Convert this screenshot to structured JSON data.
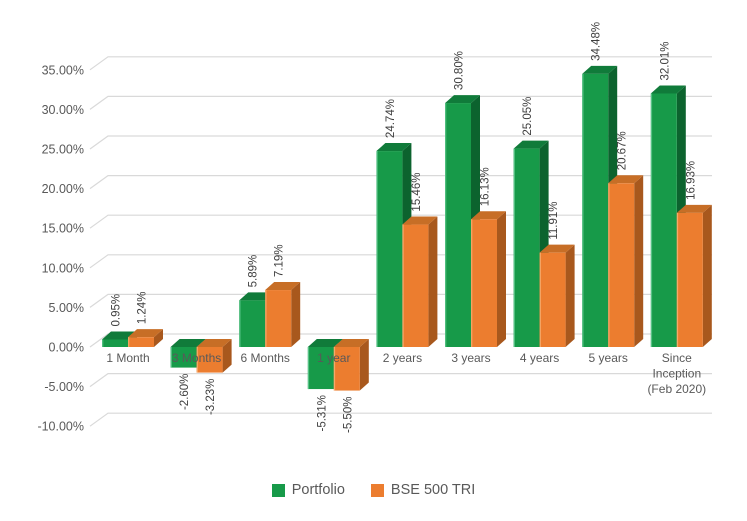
{
  "chart_data": {
    "type": "bar",
    "style": "3d-column",
    "title": "",
    "xlabel": "",
    "ylabel": "",
    "ylim": [
      -10,
      35
    ],
    "ytick_step": 5,
    "grid": true,
    "legend_position": "bottom",
    "data_label_rotation": 90,
    "categories": [
      "1 Month",
      "3 Months",
      "6 Months",
      "1 year",
      "2 years",
      "3 years",
      "4 years",
      "5 years",
      "Since Inception (Feb 2020)"
    ],
    "categories_wrapped": [
      [
        "1 Month"
      ],
      [
        "3 Months"
      ],
      [
        "6 Months"
      ],
      [
        "1 year"
      ],
      [
        "2 years"
      ],
      [
        "3 years"
      ],
      [
        "4 years"
      ],
      [
        "5 years"
      ],
      [
        "Since",
        "Inception",
        "(Feb 2020)"
      ]
    ],
    "series": [
      {
        "name": "Portfolio",
        "color": "#179A49",
        "color_top": "#107B3A",
        "color_side": "#0C632E",
        "color_edge": "#56C285",
        "values": [
          0.95,
          -2.6,
          5.89,
          -5.31,
          24.74,
          30.8,
          25.05,
          34.48,
          32.01
        ],
        "labels": [
          "0.95%",
          "-2.60%",
          "5.89%",
          "-5.31%",
          "24.74%",
          "30.80%",
          "25.05%",
          "34.48%",
          "32.01%"
        ]
      },
      {
        "name": "BSE 500 TRI",
        "color": "#EC7D2F",
        "color_top": "#C76E26",
        "color_side": "#A8581D",
        "color_edge": "#F5A869",
        "values": [
          1.24,
          -3.23,
          7.19,
          -5.5,
          15.46,
          16.13,
          11.91,
          20.67,
          16.93
        ],
        "labels": [
          "1.24%",
          "-3.23%",
          "7.19%",
          "-5.50%",
          "15.46%",
          "16.13%",
          "11.91%",
          "20.67%",
          "16.93%"
        ]
      }
    ],
    "y_axis": {
      "ticks": [
        {
          "value": 35,
          "label": "35.00%"
        },
        {
          "value": 30,
          "label": "30.00%"
        },
        {
          "value": 25,
          "label": "25.00%"
        },
        {
          "value": 20,
          "label": "20.00%"
        },
        {
          "value": 15,
          "label": "15.00%"
        },
        {
          "value": 10,
          "label": "10.00%"
        },
        {
          "value": 5,
          "label": "5.00%"
        },
        {
          "value": 0,
          "label": "0.00%"
        },
        {
          "value": -5,
          "label": "-5.00%"
        },
        {
          "value": -10,
          "label": "-10.00%"
        }
      ]
    },
    "colors": {
      "gridline": "#D9D9D9",
      "axis_text": "#595959",
      "data_label_text": "#3F3F3F",
      "category_text": "#595959",
      "background": "#FFFFFF"
    }
  }
}
